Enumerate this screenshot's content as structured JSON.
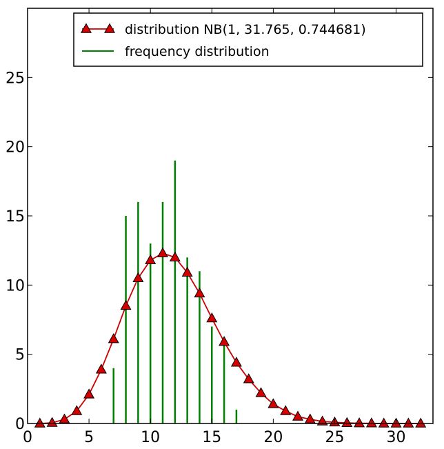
{
  "chart_data": {
    "type": "line",
    "title": "",
    "xlabel": "",
    "ylabel": "",
    "xlim": [
      0,
      33
    ],
    "ylim": [
      0,
      30
    ],
    "xticks": [
      0,
      5,
      10,
      15,
      20,
      25,
      30
    ],
    "yticks": [
      0,
      5,
      10,
      15,
      20,
      25
    ],
    "legend_position": "top-right",
    "grid": false,
    "series": [
      {
        "name": "distribution NB(1, 31.765, 0.744681)",
        "style": "line-with-triangle-markers",
        "color": "#cc0000",
        "marker_fill": "#d40000",
        "points": [
          [
            1,
            0.0
          ],
          [
            2,
            0.05
          ],
          [
            3,
            0.3
          ],
          [
            4,
            0.9
          ],
          [
            5,
            2.1
          ],
          [
            6,
            3.9
          ],
          [
            7,
            6.1
          ],
          [
            8,
            8.5
          ],
          [
            9,
            10.5
          ],
          [
            10,
            11.8
          ],
          [
            11,
            12.3
          ],
          [
            12,
            12.0
          ],
          [
            13,
            10.9
          ],
          [
            14,
            9.4
          ],
          [
            15,
            7.6
          ],
          [
            16,
            5.9
          ],
          [
            17,
            4.4
          ],
          [
            18,
            3.2
          ],
          [
            19,
            2.2
          ],
          [
            20,
            1.4
          ],
          [
            21,
            0.9
          ],
          [
            22,
            0.5
          ],
          [
            23,
            0.3
          ],
          [
            24,
            0.15
          ],
          [
            25,
            0.08
          ],
          [
            26,
            0.04
          ],
          [
            27,
            0.02
          ],
          [
            28,
            0.01
          ],
          [
            29,
            0.0
          ],
          [
            30,
            0.0
          ],
          [
            31,
            0.0
          ],
          [
            32,
            0.0
          ]
        ]
      },
      {
        "name": "frequency distribution",
        "style": "vertical-lines",
        "color": "#008000",
        "points": [
          [
            7,
            4
          ],
          [
            8,
            15
          ],
          [
            9,
            16
          ],
          [
            10,
            13
          ],
          [
            11,
            16
          ],
          [
            12,
            19
          ],
          [
            13,
            12
          ],
          [
            14,
            11
          ],
          [
            15,
            7
          ],
          [
            16,
            6
          ],
          [
            17,
            1
          ]
        ]
      }
    ]
  }
}
